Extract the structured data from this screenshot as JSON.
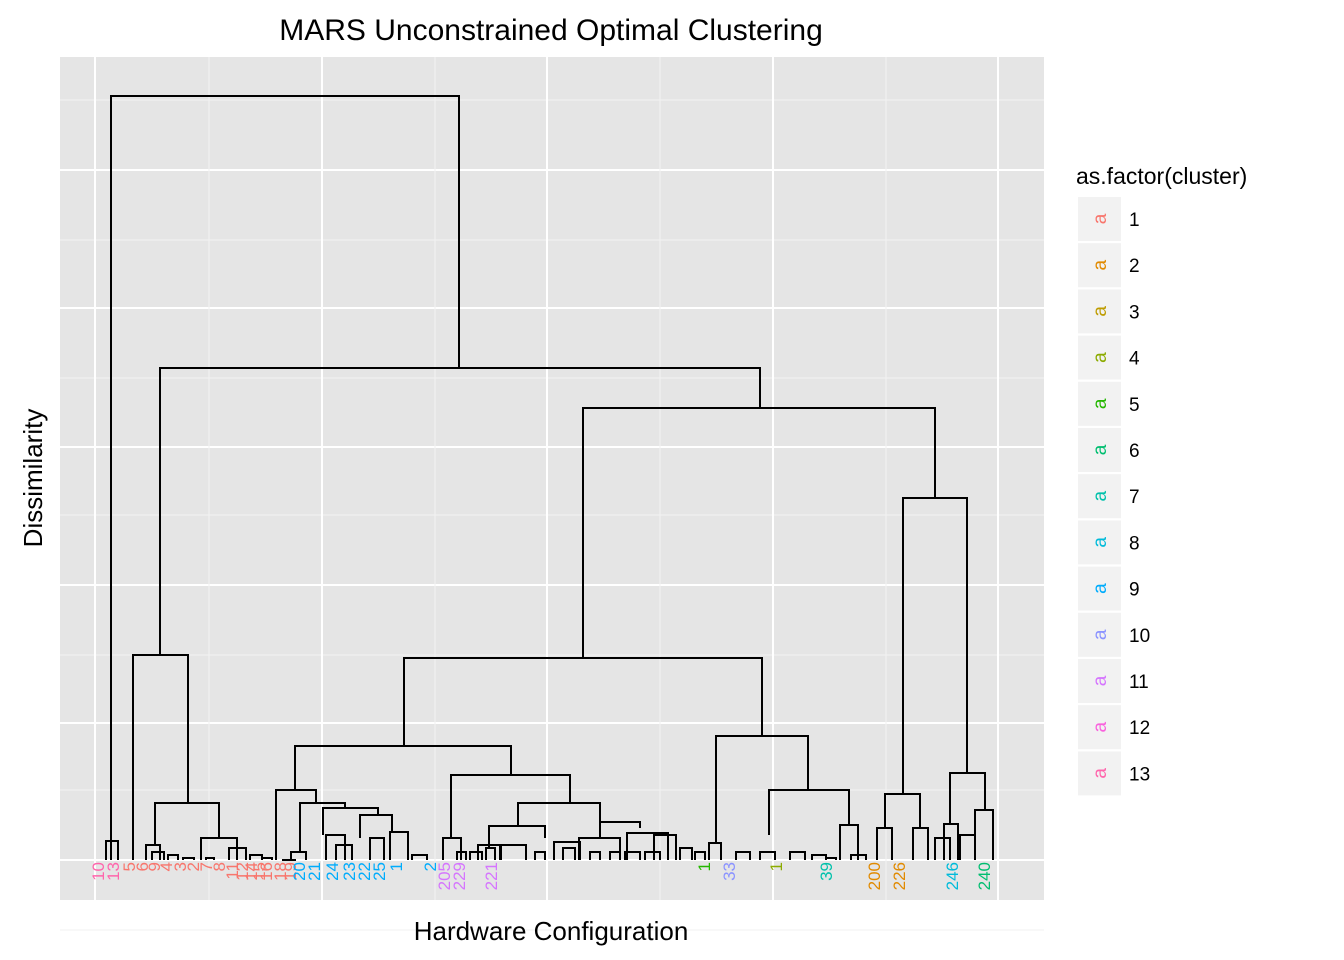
{
  "chart_data": {
    "type": "dendrogram",
    "title": "MARS Unconstrained Optimal Clustering",
    "xlabel": "Hardware Configuration",
    "ylabel": "Dissimilarity",
    "y_tick_labels_shown": false,
    "grid": true,
    "legend": {
      "title": "as.factor(cluster)",
      "position": "right",
      "key_glyph": "a",
      "entries": [
        {
          "label": "1",
          "color": "#F8766D"
        },
        {
          "label": "2",
          "color": "#E18A00"
        },
        {
          "label": "3",
          "color": "#BE9C00"
        },
        {
          "label": "4",
          "color": "#8CAB00"
        },
        {
          "label": "5",
          "color": "#24B700"
        },
        {
          "label": "6",
          "color": "#00BE70"
        },
        {
          "label": "7",
          "color": "#00C1AB"
        },
        {
          "label": "8",
          "color": "#00BBDA"
        },
        {
          "label": "9",
          "color": "#00ACFC"
        },
        {
          "label": "10",
          "color": "#8B93FF"
        },
        {
          "label": "11",
          "color": "#D575FE"
        },
        {
          "label": "12",
          "color": "#F962DD"
        },
        {
          "label": "13",
          "color": "#FF65AC"
        }
      ]
    },
    "visible_leaf_labels": [
      {
        "text": "10",
        "cluster": "13"
      },
      {
        "text": "13",
        "cluster": "13"
      },
      {
        "text": "5",
        "cluster": "1"
      },
      {
        "text": "6",
        "cluster": "1"
      },
      {
        "text": "9",
        "cluster": "1"
      },
      {
        "text": "4",
        "cluster": "1"
      },
      {
        "text": "3",
        "cluster": "1"
      },
      {
        "text": "2",
        "cluster": "1"
      },
      {
        "text": "7",
        "cluster": "1"
      },
      {
        "text": "8",
        "cluster": "1"
      },
      {
        "text": "11",
        "cluster": "1"
      },
      {
        "text": "12",
        "cluster": "1"
      },
      {
        "text": "14",
        "cluster": "1"
      },
      {
        "text": "15",
        "cluster": "1"
      },
      {
        "text": "16",
        "cluster": "1"
      },
      {
        "text": "18",
        "cluster": "1"
      },
      {
        "text": "19",
        "cluster": "1"
      },
      {
        "text": "20",
        "cluster": "9"
      },
      {
        "text": "21",
        "cluster": "9"
      },
      {
        "text": "24",
        "cluster": "9"
      },
      {
        "text": "23",
        "cluster": "9"
      },
      {
        "text": "22",
        "cluster": "9"
      },
      {
        "text": "25",
        "cluster": "9"
      },
      {
        "text": "1",
        "cluster": "9"
      },
      {
        "text": "2",
        "cluster": "9"
      },
      {
        "text": "205",
        "cluster": "11"
      },
      {
        "text": "229",
        "cluster": "11"
      },
      {
        "text": "221",
        "cluster": "11"
      },
      {
        "text": "1",
        "cluster": "5"
      },
      {
        "text": "33",
        "cluster": "10"
      },
      {
        "text": "1",
        "cluster": "4"
      },
      {
        "text": "39",
        "cluster": "7"
      },
      {
        "text": "200",
        "cluster": "2"
      },
      {
        "text": "226",
        "cluster": "2"
      },
      {
        "text": "246",
        "cluster": "8"
      },
      {
        "text": "240",
        "cluster": "6"
      }
    ]
  }
}
